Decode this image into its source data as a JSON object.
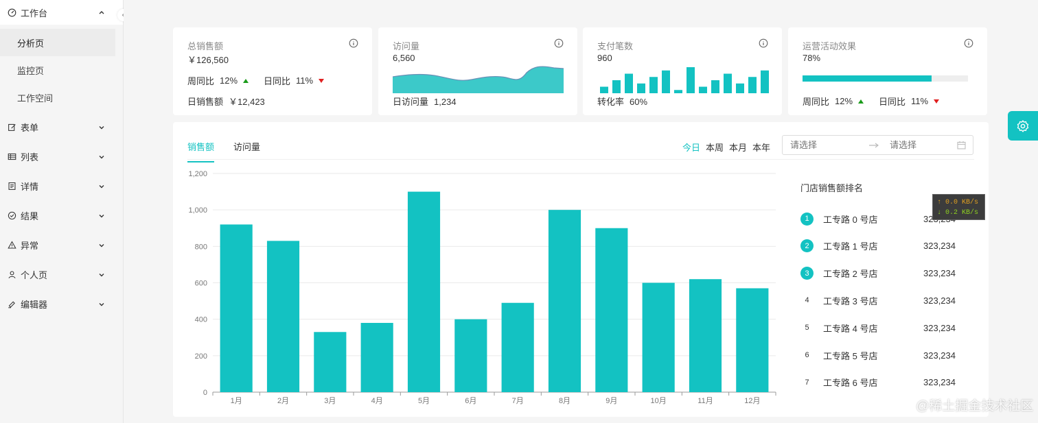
{
  "sidebar": {
    "items": [
      {
        "label": "工作台",
        "icon": "dashboard-icon",
        "expanded": true,
        "children": [
          {
            "label": "分析页",
            "active": true
          },
          {
            "label": "监控页"
          },
          {
            "label": "工作空间"
          }
        ]
      },
      {
        "label": "表单",
        "icon": "form-icon"
      },
      {
        "label": "列表",
        "icon": "table-icon"
      },
      {
        "label": "详情",
        "icon": "profile-icon"
      },
      {
        "label": "结果",
        "icon": "check-circle-icon"
      },
      {
        "label": "异常",
        "icon": "warning-icon"
      },
      {
        "label": "个人页",
        "icon": "user-icon"
      },
      {
        "label": "编辑器",
        "icon": "highlight-icon"
      }
    ]
  },
  "cards": {
    "sales": {
      "title": "总销售额",
      "value": "￥126,560",
      "week_label": "周同比",
      "week_pct": "12%",
      "day_label": "日同比",
      "day_pct": "11%",
      "foot_label": "日销售额",
      "foot_value": "￥12,423"
    },
    "visits": {
      "title": "访问量",
      "value": "6,560",
      "foot_label": "日访问量",
      "foot_value": "1,234"
    },
    "payments": {
      "title": "支付笔数",
      "value": "960",
      "foot_label": "转化率",
      "foot_value": "60%",
      "bar_values": [
        4,
        8,
        12,
        6,
        10,
        14,
        2,
        16,
        4,
        8,
        12,
        6,
        10,
        14
      ]
    },
    "ops": {
      "title": "运营活动效果",
      "value": "78%",
      "progress": 0.78,
      "week_label": "周同比",
      "week_pct": "12%",
      "day_label": "日同比",
      "day_pct": "11%"
    }
  },
  "panel": {
    "tabs": [
      "销售额",
      "访问量"
    ],
    "ranges": [
      "今日",
      "本周",
      "本月",
      "本年"
    ],
    "date_start_placeholder": "请选择",
    "date_end_placeholder": "请选择",
    "rank_title": "门店销售额排名",
    "ranking": [
      {
        "rank": "1",
        "name": "工专路 0 号店",
        "value": "323,234"
      },
      {
        "rank": "2",
        "name": "工专路 1 号店",
        "value": "323,234"
      },
      {
        "rank": "3",
        "name": "工专路 2 号店",
        "value": "323,234"
      },
      {
        "rank": "4",
        "name": "工专路 3 号店",
        "value": "323,234"
      },
      {
        "rank": "5",
        "name": "工专路 4 号店",
        "value": "323,234"
      },
      {
        "rank": "6",
        "name": "工专路 5 号店",
        "value": "323,234"
      },
      {
        "rank": "7",
        "name": "工专路 6 号店",
        "value": "323,234"
      }
    ]
  },
  "chart_data": {
    "type": "bar",
    "title": "",
    "xlabel": "",
    "ylabel": "",
    "categories": [
      "1月",
      "2月",
      "3月",
      "4月",
      "5月",
      "6月",
      "7月",
      "8月",
      "9月",
      "10月",
      "11月",
      "12月"
    ],
    "values": [
      920,
      830,
      330,
      380,
      1100,
      400,
      490,
      1000,
      900,
      600,
      620,
      570
    ],
    "ylim": [
      0,
      1200
    ],
    "yticks": [
      "0",
      "200",
      "400",
      "600",
      "800",
      "1,000",
      "1,200"
    ],
    "grid": true,
    "color": "#13c2c2"
  },
  "netspeed": {
    "up": "↑ 0.0 KB/s",
    "down": "↓ 0.2 KB/s"
  },
  "watermark": "@稀土掘金技术社区",
  "colors": {
    "accent": "#13c2c2",
    "up": "#1a9b1a",
    "down": "#e02020"
  }
}
